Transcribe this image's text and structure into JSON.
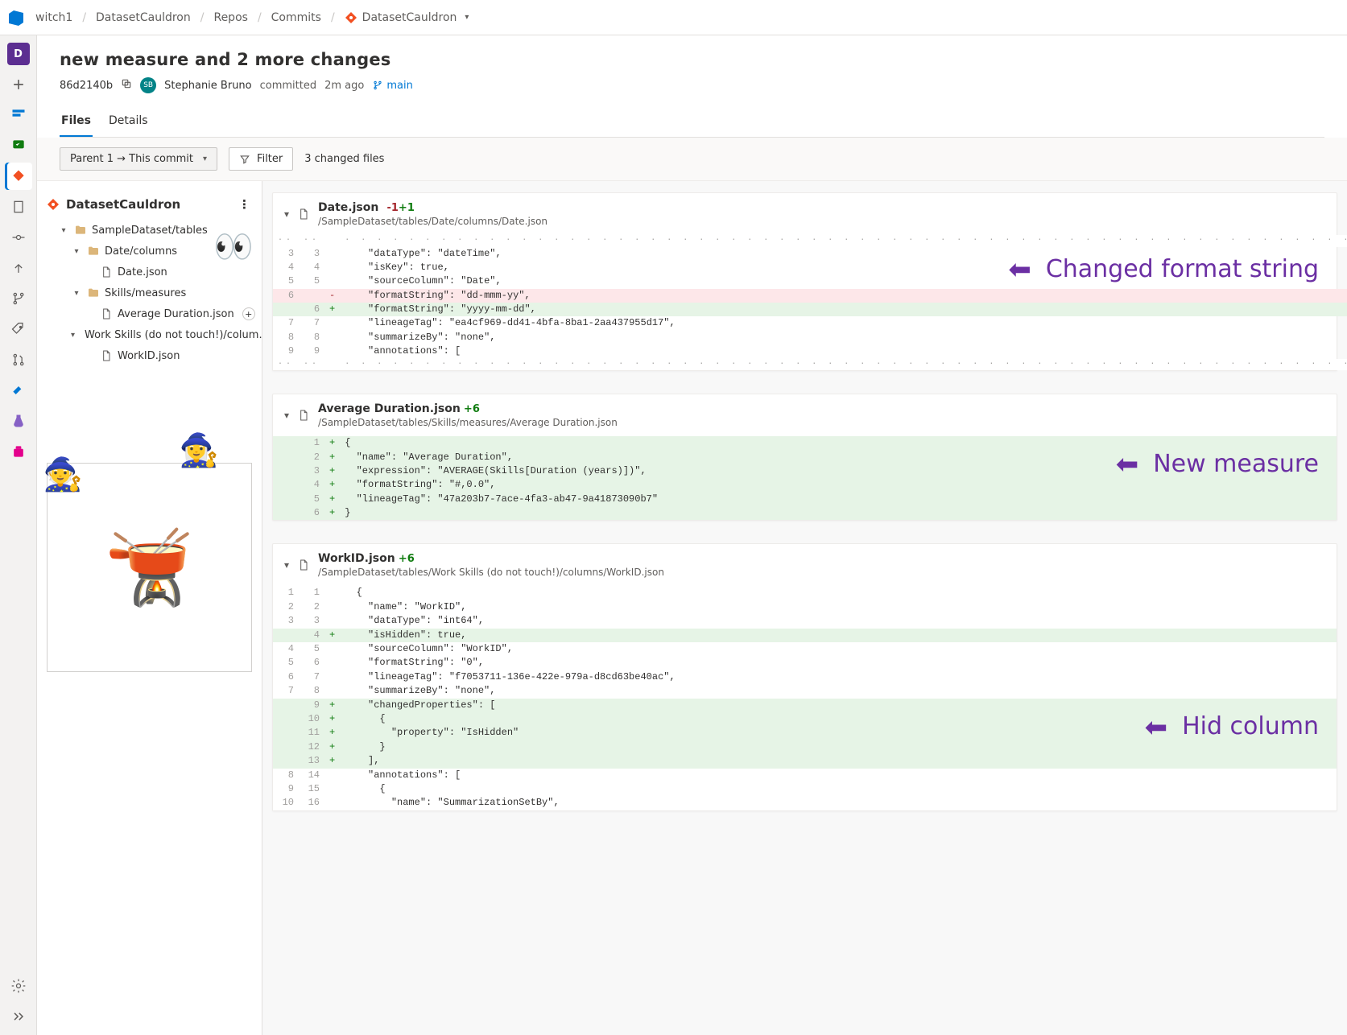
{
  "breadcrumb": {
    "org": "witch1",
    "project": "DatasetCauldron",
    "section": "Repos",
    "subsection": "Commits",
    "repo": "DatasetCauldron"
  },
  "rail": {
    "project_initial": "D",
    "project_badge_bg": "#5c2e91"
  },
  "commit": {
    "title": "new measure and 2 more changes",
    "hash": "86d2140b",
    "author": "Stephanie Bruno",
    "action": "committed",
    "when": "2m ago",
    "branch": "main"
  },
  "tabs": {
    "files": "Files",
    "details": "Details"
  },
  "toolbar": {
    "compare": "Parent 1 → This commit",
    "filter": "Filter",
    "changed": "3 changed files"
  },
  "tree": {
    "root": "DatasetCauldron",
    "nodes": [
      {
        "kind": "folder",
        "depth": 1,
        "label": "SampleDataset/tables",
        "open": true
      },
      {
        "kind": "folder",
        "depth": 2,
        "label": "Date/columns",
        "open": true
      },
      {
        "kind": "file",
        "depth": 3,
        "label": "Date.json"
      },
      {
        "kind": "folder",
        "depth": 2,
        "label": "Skills/measures",
        "open": true
      },
      {
        "kind": "file",
        "depth": 3,
        "label": "Average Duration.json",
        "added": true
      },
      {
        "kind": "folder",
        "depth": 2,
        "label": "Work Skills (do not touch!)/colum…",
        "open": true
      },
      {
        "kind": "file",
        "depth": 3,
        "label": "WorkID.json"
      }
    ]
  },
  "files": [
    {
      "name": "Date.json",
      "minus": "-1",
      "plus": "+1",
      "path": "/SampleDataset/tables/Date/columns/Date.json",
      "callout": "Changed format string",
      "lines": [
        {
          "t": "sep"
        },
        {
          "t": "ctx",
          "a": "3",
          "b": "3",
          "c": "    \"dataType\": \"dateTime\","
        },
        {
          "t": "ctx",
          "a": "4",
          "b": "4",
          "c": "    \"isKey\": true,"
        },
        {
          "t": "ctx",
          "a": "5",
          "b": "5",
          "c": "    \"sourceColumn\": \"Date\","
        },
        {
          "t": "del",
          "a": "6",
          "b": "",
          "c": "    \"formatString\": \"dd-mmm-yy\","
        },
        {
          "t": "add",
          "a": "",
          "b": "6",
          "c": "    \"formatString\": \"yyyy-mm-dd\","
        },
        {
          "t": "ctx",
          "a": "7",
          "b": "7",
          "c": "    \"lineageTag\": \"ea4cf969-dd41-4bfa-8ba1-2aa437955d17\","
        },
        {
          "t": "ctx",
          "a": "8",
          "b": "8",
          "c": "    \"summarizeBy\": \"none\","
        },
        {
          "t": "ctx",
          "a": "9",
          "b": "9",
          "c": "    \"annotations\": ["
        },
        {
          "t": "sep"
        }
      ]
    },
    {
      "name": "Average Duration.json",
      "minus": "",
      "plus": "+6",
      "path": "/SampleDataset/tables/Skills/measures/Average Duration.json",
      "callout": "New measure",
      "lines": [
        {
          "t": "add",
          "a": "",
          "b": "1",
          "c": "{"
        },
        {
          "t": "add",
          "a": "",
          "b": "2",
          "c": "  \"name\": \"Average Duration\","
        },
        {
          "t": "add",
          "a": "",
          "b": "3",
          "c": "  \"expression\": \"AVERAGE(Skills[Duration (years)])\","
        },
        {
          "t": "add",
          "a": "",
          "b": "4",
          "c": "  \"formatString\": \"#,0.0\","
        },
        {
          "t": "add",
          "a": "",
          "b": "5",
          "c": "  \"lineageTag\": \"47a203b7-7ace-4fa3-ab47-9a41873090b7\""
        },
        {
          "t": "add",
          "a": "",
          "b": "6",
          "c": "}"
        }
      ]
    },
    {
      "name": "WorkID.json",
      "minus": "",
      "plus": "+6",
      "path": "/SampleDataset/tables/Work Skills (do not touch!)/columns/WorkID.json",
      "callout": "Hid column",
      "lines": [
        {
          "t": "ctx",
          "a": "1",
          "b": "1",
          "c": "  {"
        },
        {
          "t": "ctx",
          "a": "2",
          "b": "2",
          "c": "    \"name\": \"WorkID\","
        },
        {
          "t": "ctx",
          "a": "3",
          "b": "3",
          "c": "    \"dataType\": \"int64\","
        },
        {
          "t": "add",
          "a": "",
          "b": "4",
          "c": "    \"isHidden\": true,"
        },
        {
          "t": "ctx",
          "a": "4",
          "b": "5",
          "c": "    \"sourceColumn\": \"WorkID\","
        },
        {
          "t": "ctx",
          "a": "5",
          "b": "6",
          "c": "    \"formatString\": \"0\","
        },
        {
          "t": "ctx",
          "a": "6",
          "b": "7",
          "c": "    \"lineageTag\": \"f7053711-136e-422e-979a-d8cd63be40ac\","
        },
        {
          "t": "ctx",
          "a": "7",
          "b": "8",
          "c": "    \"summarizeBy\": \"none\","
        },
        {
          "t": "add",
          "a": "",
          "b": "9",
          "c": "    \"changedProperties\": ["
        },
        {
          "t": "add",
          "a": "",
          "b": "10",
          "c": "      {"
        },
        {
          "t": "add",
          "a": "",
          "b": "11",
          "c": "        \"property\": \"IsHidden\""
        },
        {
          "t": "add",
          "a": "",
          "b": "12",
          "c": "      }"
        },
        {
          "t": "add",
          "a": "",
          "b": "13",
          "c": "    ],"
        },
        {
          "t": "ctx",
          "a": "8",
          "b": "14",
          "c": "    \"annotations\": ["
        },
        {
          "t": "ctx",
          "a": "9",
          "b": "15",
          "c": "      {"
        },
        {
          "t": "ctx",
          "a": "10",
          "b": "16",
          "c": "        \"name\": \"SummarizationSetBy\","
        }
      ]
    }
  ]
}
